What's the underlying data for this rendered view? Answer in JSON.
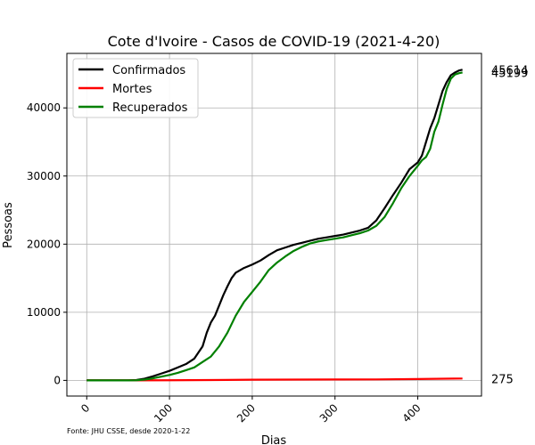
{
  "chart_data": {
    "type": "line",
    "title": "Cote d'Ivoire - Casos de COVID-19 (2021-4-20)",
    "xlabel": "Dias",
    "ylabel": "Pessoas",
    "xlim": [
      -24,
      477
    ],
    "ylim": [
      -2300,
      48000
    ],
    "x_ticks": [
      0,
      100,
      200,
      300,
      400
    ],
    "y_ticks": [
      0,
      10000,
      20000,
      30000,
      40000
    ],
    "x_tick_labels": [
      "0",
      "100",
      "200",
      "300",
      "400"
    ],
    "y_tick_labels": [
      "0",
      "10000",
      "20000",
      "30000",
      "40000"
    ],
    "grid": true,
    "legend_position": "top-left",
    "source_note": "Fonte: JHU CSSE, desde 2020-1-22",
    "series": [
      {
        "name": "Confirmados",
        "color": "#000000",
        "end_label": "45614",
        "points": [
          [
            0,
            0
          ],
          [
            50,
            0
          ],
          [
            60,
            50
          ],
          [
            70,
            250
          ],
          [
            80,
            600
          ],
          [
            90,
            1000
          ],
          [
            100,
            1400
          ],
          [
            110,
            1900
          ],
          [
            120,
            2400
          ],
          [
            130,
            3200
          ],
          [
            140,
            5000
          ],
          [
            145,
            7000
          ],
          [
            150,
            8500
          ],
          [
            155,
            9500
          ],
          [
            160,
            11000
          ],
          [
            165,
            12500
          ],
          [
            170,
            13800
          ],
          [
            175,
            15000
          ],
          [
            180,
            15800
          ],
          [
            190,
            16500
          ],
          [
            200,
            17000
          ],
          [
            210,
            17600
          ],
          [
            220,
            18400
          ],
          [
            230,
            19100
          ],
          [
            240,
            19500
          ],
          [
            250,
            19900
          ],
          [
            260,
            20200
          ],
          [
            270,
            20500
          ],
          [
            280,
            20800
          ],
          [
            290,
            21000
          ],
          [
            300,
            21200
          ],
          [
            310,
            21400
          ],
          [
            320,
            21700
          ],
          [
            330,
            22000
          ],
          [
            340,
            22400
          ],
          [
            350,
            23500
          ],
          [
            360,
            25300
          ],
          [
            370,
            27200
          ],
          [
            380,
            29000
          ],
          [
            390,
            31000
          ],
          [
            400,
            32000
          ],
          [
            405,
            33000
          ],
          [
            410,
            35000
          ],
          [
            415,
            37000
          ],
          [
            420,
            38500
          ],
          [
            425,
            40500
          ],
          [
            430,
            42500
          ],
          [
            435,
            43800
          ],
          [
            440,
            44800
          ],
          [
            445,
            45200
          ],
          [
            450,
            45500
          ],
          [
            454,
            45614
          ]
        ]
      },
      {
        "name": "Mortes",
        "color": "#ff0000",
        "end_label": "275",
        "points": [
          [
            0,
            0
          ],
          [
            50,
            0
          ],
          [
            100,
            20
          ],
          [
            150,
            50
          ],
          [
            200,
            100
          ],
          [
            250,
            120
          ],
          [
            300,
            130
          ],
          [
            350,
            145
          ],
          [
            400,
            200
          ],
          [
            454,
            275
          ]
        ]
      },
      {
        "name": "Recuperados",
        "color": "#008000",
        "end_label": "45199",
        "points": [
          [
            0,
            0
          ],
          [
            50,
            0
          ],
          [
            60,
            20
          ],
          [
            70,
            120
          ],
          [
            80,
            300
          ],
          [
            90,
            550
          ],
          [
            100,
            800
          ],
          [
            110,
            1100
          ],
          [
            120,
            1500
          ],
          [
            130,
            1900
          ],
          [
            140,
            2700
          ],
          [
            150,
            3500
          ],
          [
            160,
            5000
          ],
          [
            170,
            7000
          ],
          [
            180,
            9500
          ],
          [
            190,
            11500
          ],
          [
            200,
            13000
          ],
          [
            210,
            14500
          ],
          [
            220,
            16200
          ],
          [
            230,
            17300
          ],
          [
            240,
            18200
          ],
          [
            250,
            19000
          ],
          [
            260,
            19600
          ],
          [
            270,
            20100
          ],
          [
            280,
            20400
          ],
          [
            290,
            20600
          ],
          [
            300,
            20800
          ],
          [
            310,
            21000
          ],
          [
            320,
            21300
          ],
          [
            330,
            21600
          ],
          [
            340,
            22000
          ],
          [
            350,
            22700
          ],
          [
            360,
            24000
          ],
          [
            370,
            26000
          ],
          [
            380,
            28200
          ],
          [
            390,
            30000
          ],
          [
            400,
            31500
          ],
          [
            405,
            32300
          ],
          [
            410,
            32800
          ],
          [
            415,
            34000
          ],
          [
            420,
            36500
          ],
          [
            425,
            38000
          ],
          [
            430,
            40500
          ],
          [
            435,
            42800
          ],
          [
            440,
            44300
          ],
          [
            445,
            44900
          ],
          [
            450,
            45100
          ],
          [
            454,
            45199
          ]
        ]
      }
    ]
  }
}
